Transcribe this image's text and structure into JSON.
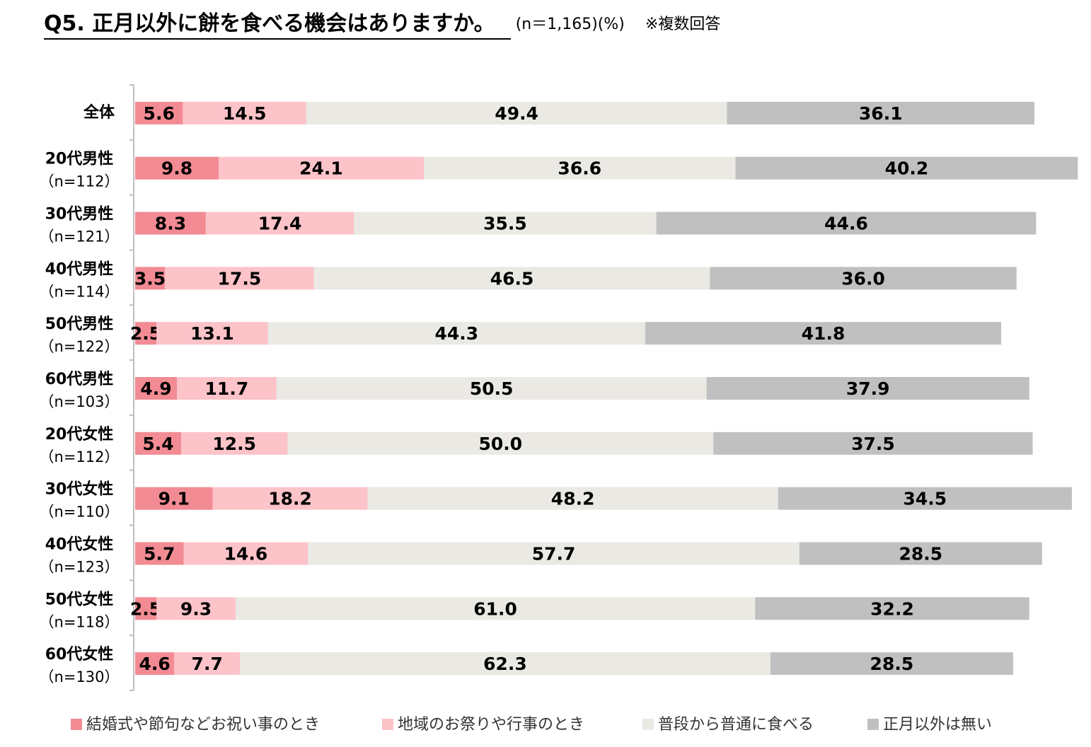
{
  "chart_data": {
    "type": "bar",
    "orientation": "horizontal",
    "stacked": true,
    "title": "Q5. 正月以外に餅を食べる機会はありますか。",
    "sample_note": "(n＝1,165)(%)",
    "multi_answer_note": "※複数回答",
    "categories": [
      {
        "label": "全体",
        "n": ""
      },
      {
        "label": "20代男性",
        "n": "（n=112）"
      },
      {
        "label": "30代男性",
        "n": "（n=121）"
      },
      {
        "label": "40代男性",
        "n": "（n=114）"
      },
      {
        "label": "50代男性",
        "n": "（n=122）"
      },
      {
        "label": "60代男性",
        "n": "（n=103）"
      },
      {
        "label": "20代女性",
        "n": "（n=112）"
      },
      {
        "label": "30代女性",
        "n": "（n=110）"
      },
      {
        "label": "40代女性",
        "n": "（n=123）"
      },
      {
        "label": "50代女性",
        "n": "（n=118）"
      },
      {
        "label": "60代女性",
        "n": "（n=130）"
      }
    ],
    "series": [
      {
        "name": "結婚式や節句などお祝い事のとき",
        "color": "#f28b93",
        "values": [
          "5.6",
          "9.8",
          "8.3",
          "3.5",
          "2.5",
          "4.9",
          "5.4",
          "9.1",
          "5.7",
          "2.5",
          "4.6"
        ]
      },
      {
        "name": "地域のお祭りや行事のとき",
        "color": "#fcc3c9",
        "values": [
          "14.5",
          "24.1",
          "17.4",
          "17.5",
          "13.1",
          "11.7",
          "12.5",
          "18.2",
          "14.6",
          "9.3",
          "7.7"
        ]
      },
      {
        "name": "普段から普通に食べる",
        "color": "#ebe9e4",
        "values": [
          "49.4",
          "36.6",
          "35.5",
          "46.5",
          "44.3",
          "50.5",
          "50.0",
          "48.2",
          "57.7",
          "61.0",
          "62.3"
        ]
      },
      {
        "name": "正月以外は無い",
        "color": "#c0c0c0",
        "values": [
          "36.1",
          "40.2",
          "44.6",
          "36.0",
          "41.8",
          "37.9",
          "37.5",
          "34.5",
          "28.5",
          "32.2",
          "28.5"
        ]
      }
    ],
    "xlim": [
      0,
      111
    ]
  }
}
